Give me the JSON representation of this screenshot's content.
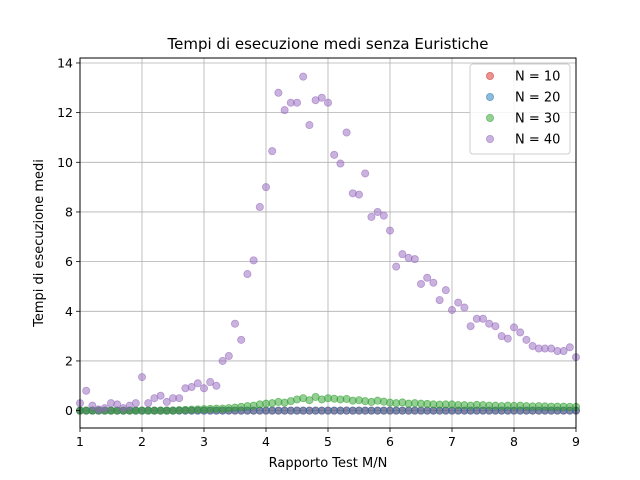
{
  "chart_data": {
    "type": "scatter",
    "title": "Tempi di esecuzione medi senza Euristiche",
    "xlabel": "Rapporto Test M/N",
    "ylabel": "Tempi di esecuzione medi",
    "xlim": [
      1,
      9
    ],
    "ylim": [
      -0.7,
      14.2
    ],
    "xticks": [
      "1",
      "2",
      "3",
      "4",
      "5",
      "6",
      "7",
      "8",
      "9"
    ],
    "yticks": [
      "0",
      "2",
      "4",
      "6",
      "8",
      "10",
      "12",
      "14"
    ],
    "grid": true,
    "legend_position": "top-right",
    "series": [
      {
        "name": "N = 10",
        "color": "#d62728",
        "x": [
          1.0,
          1.1,
          1.2,
          1.3,
          1.4,
          1.5,
          1.6,
          1.7,
          1.8,
          1.9,
          2.0,
          2.1,
          2.2,
          2.3,
          2.4,
          2.5,
          2.6,
          2.7,
          2.8,
          2.9,
          3.0,
          3.1,
          3.2,
          3.3,
          3.4,
          3.5,
          3.6,
          3.7,
          3.8,
          3.9,
          4.0,
          4.1,
          4.2,
          4.3,
          4.4,
          4.5,
          4.6,
          4.7,
          4.8,
          4.9,
          5.0,
          5.1,
          5.2,
          5.3,
          5.4,
          5.5,
          5.6,
          5.7,
          5.8,
          5.9,
          6.0,
          6.1,
          6.2,
          6.3,
          6.4,
          6.5,
          6.6,
          6.7,
          6.8,
          6.9,
          7.0,
          7.1,
          7.2,
          7.3,
          7.4,
          7.5,
          7.6,
          7.7,
          7.8,
          7.9,
          8.0,
          8.1,
          8.2,
          8.3,
          8.4,
          8.5,
          8.6,
          8.7,
          8.8,
          8.9,
          9.0
        ],
        "y": [
          0,
          0,
          0,
          0,
          0,
          0,
          0,
          0,
          0,
          0,
          0,
          0,
          0,
          0,
          0,
          0,
          0,
          0,
          0,
          0,
          0,
          0,
          0,
          0,
          0,
          0,
          0,
          0,
          0,
          0,
          0,
          0,
          0,
          0,
          0,
          0,
          0,
          0,
          0,
          0,
          0,
          0,
          0,
          0,
          0,
          0,
          0,
          0,
          0,
          0,
          0,
          0,
          0,
          0,
          0,
          0,
          0,
          0,
          0,
          0,
          0,
          0,
          0,
          0,
          0,
          0,
          0,
          0,
          0,
          0,
          0,
          0,
          0,
          0,
          0,
          0,
          0,
          0,
          0,
          0,
          0
        ]
      },
      {
        "name": "N = 20",
        "color": "#1f77b4",
        "x": [
          1.0,
          1.1,
          1.2,
          1.3,
          1.4,
          1.5,
          1.6,
          1.7,
          1.8,
          1.9,
          2.0,
          2.1,
          2.2,
          2.3,
          2.4,
          2.5,
          2.6,
          2.7,
          2.8,
          2.9,
          3.0,
          3.1,
          3.2,
          3.3,
          3.4,
          3.5,
          3.6,
          3.7,
          3.8,
          3.9,
          4.0,
          4.1,
          4.2,
          4.3,
          4.4,
          4.5,
          4.6,
          4.7,
          4.8,
          4.9,
          5.0,
          5.1,
          5.2,
          5.3,
          5.4,
          5.5,
          5.6,
          5.7,
          5.8,
          5.9,
          6.0,
          6.1,
          6.2,
          6.3,
          6.4,
          6.5,
          6.6,
          6.7,
          6.8,
          6.9,
          7.0,
          7.1,
          7.2,
          7.3,
          7.4,
          7.5,
          7.6,
          7.7,
          7.8,
          7.9,
          8.0,
          8.1,
          8.2,
          8.3,
          8.4,
          8.5,
          8.6,
          8.7,
          8.8,
          8.9,
          9.0
        ],
        "y": [
          0,
          0,
          0,
          0,
          0,
          0,
          0,
          0,
          0,
          0,
          0,
          0,
          0,
          0,
          0,
          0,
          0,
          0,
          0,
          0,
          0,
          0,
          0,
          0,
          0,
          0,
          0,
          0,
          0,
          0,
          0,
          0,
          0,
          0,
          0,
          0,
          0,
          0,
          0,
          0,
          0,
          0,
          0,
          0,
          0,
          0,
          0,
          0,
          0,
          0,
          0,
          0,
          0,
          0,
          0,
          0,
          0,
          0,
          0,
          0,
          0,
          0,
          0,
          0,
          0,
          0,
          0,
          0,
          0,
          0,
          0,
          0,
          0,
          0,
          0,
          0,
          0,
          0,
          0,
          0,
          0
        ]
      },
      {
        "name": "N = 30",
        "color": "#2ca02c",
        "x": [
          1.0,
          1.1,
          1.2,
          1.3,
          1.4,
          1.5,
          1.6,
          1.7,
          1.8,
          1.9,
          2.0,
          2.1,
          2.2,
          2.3,
          2.4,
          2.5,
          2.6,
          2.7,
          2.8,
          2.9,
          3.0,
          3.1,
          3.2,
          3.3,
          3.4,
          3.5,
          3.6,
          3.7,
          3.8,
          3.9,
          4.0,
          4.1,
          4.2,
          4.3,
          4.4,
          4.5,
          4.6,
          4.7,
          4.8,
          4.9,
          5.0,
          5.1,
          5.2,
          5.3,
          5.4,
          5.5,
          5.6,
          5.7,
          5.8,
          5.9,
          6.0,
          6.1,
          6.2,
          6.3,
          6.4,
          6.5,
          6.6,
          6.7,
          6.8,
          6.9,
          7.0,
          7.1,
          7.2,
          7.3,
          7.4,
          7.5,
          7.6,
          7.7,
          7.8,
          7.9,
          8.0,
          8.1,
          8.2,
          8.3,
          8.4,
          8.5,
          8.6,
          8.7,
          8.8,
          8.9,
          9.0
        ],
        "y": [
          0,
          0,
          0,
          0,
          0,
          0,
          0,
          0,
          0,
          0,
          0,
          0,
          0,
          0,
          0,
          0,
          0.02,
          0.03,
          0.04,
          0.05,
          0.06,
          0.07,
          0.08,
          0.08,
          0.1,
          0.12,
          0.15,
          0.18,
          0.2,
          0.25,
          0.28,
          0.3,
          0.35,
          0.32,
          0.38,
          0.45,
          0.5,
          0.42,
          0.55,
          0.45,
          0.5,
          0.48,
          0.45,
          0.47,
          0.4,
          0.42,
          0.38,
          0.35,
          0.4,
          0.36,
          0.32,
          0.3,
          0.33,
          0.28,
          0.3,
          0.28,
          0.27,
          0.25,
          0.24,
          0.25,
          0.25,
          0.22,
          0.22,
          0.2,
          0.23,
          0.22,
          0.2,
          0.2,
          0.18,
          0.2,
          0.19,
          0.2,
          0.18,
          0.17,
          0.18,
          0.17,
          0.16,
          0.16,
          0.16,
          0.15,
          0.15
        ]
      },
      {
        "name": "N = 40",
        "color": "#9467bd",
        "x": [
          1.0,
          1.1,
          1.2,
          1.3,
          1.4,
          1.5,
          1.6,
          1.7,
          1.8,
          1.9,
          2.0,
          2.1,
          2.2,
          2.3,
          2.4,
          2.5,
          2.6,
          2.7,
          2.8,
          2.9,
          3.0,
          3.1,
          3.2,
          3.3,
          3.4,
          3.5,
          3.6,
          3.7,
          3.8,
          3.9,
          4.0,
          4.1,
          4.2,
          4.3,
          4.4,
          4.5,
          4.6,
          4.7,
          4.8,
          4.9,
          5.0,
          5.1,
          5.2,
          5.3,
          5.4,
          5.5,
          5.6,
          5.7,
          5.8,
          5.9,
          6.0,
          6.1,
          6.2,
          6.3,
          6.4,
          6.5,
          6.6,
          6.7,
          6.8,
          6.9,
          7.0,
          7.1,
          7.2,
          7.3,
          7.4,
          7.5,
          7.6,
          7.7,
          7.8,
          7.9,
          8.0,
          8.1,
          8.2,
          8.3,
          8.4,
          8.5,
          8.6,
          8.7,
          8.8,
          8.9,
          9.0
        ],
        "y": [
          0.3,
          0.8,
          0.2,
          0.05,
          0.1,
          0.3,
          0.25,
          0.1,
          0.2,
          0.3,
          1.35,
          0.3,
          0.5,
          0.6,
          0.35,
          0.5,
          0.5,
          0.9,
          0.95,
          1.1,
          0.9,
          1.15,
          1.0,
          2.0,
          2.2,
          3.5,
          2.85,
          5.5,
          6.05,
          8.2,
          9.0,
          10.45,
          12.8,
          12.1,
          12.4,
          12.4,
          13.45,
          11.5,
          12.5,
          12.6,
          12.4,
          10.3,
          9.95,
          11.2,
          8.75,
          8.7,
          9.55,
          7.8,
          8.0,
          7.85,
          7.25,
          5.8,
          6.3,
          6.15,
          6.1,
          5.1,
          5.35,
          5.15,
          4.45,
          4.85,
          4.05,
          4.35,
          4.15,
          3.4,
          3.7,
          3.7,
          3.5,
          3.4,
          3.0,
          2.9,
          3.35,
          3.15,
          2.85,
          2.6,
          2.5,
          2.5,
          2.5,
          2.4,
          2.4,
          2.55,
          2.15
        ]
      }
    ]
  }
}
